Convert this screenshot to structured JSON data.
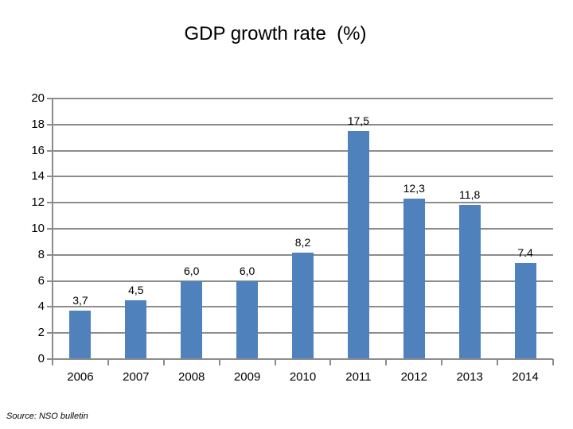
{
  "title": "GDP growth rate  (%)",
  "source_note": "Source: NSO bulletin",
  "chart_data": {
    "type": "bar",
    "title": "GDP growth rate  (%)",
    "categories": [
      "2006",
      "2007",
      "2008",
      "2009",
      "2010",
      "2011",
      "2012",
      "2013",
      "2014"
    ],
    "values": [
      3.7,
      4.5,
      6.0,
      6.0,
      8.2,
      17.5,
      12.3,
      11.8,
      7.4
    ],
    "data_labels": [
      "3,7",
      "4,5",
      "6,0",
      "6,0",
      "8,2",
      "17,5",
      "12,3",
      "11,8",
      "7.4"
    ],
    "xlabel": "",
    "ylabel": "",
    "ylim": [
      0,
      20
    ],
    "y_ticks": [
      0,
      2,
      4,
      6,
      8,
      10,
      12,
      14,
      16,
      18,
      20
    ],
    "grid": true,
    "legend_position": "none",
    "bar_color": "#4F81BD",
    "gridline_color": "#8C8C8C",
    "axis_color": "#8C8C8C",
    "label_color": "#000000",
    "source_note": "Source: NSO bulletin"
  }
}
